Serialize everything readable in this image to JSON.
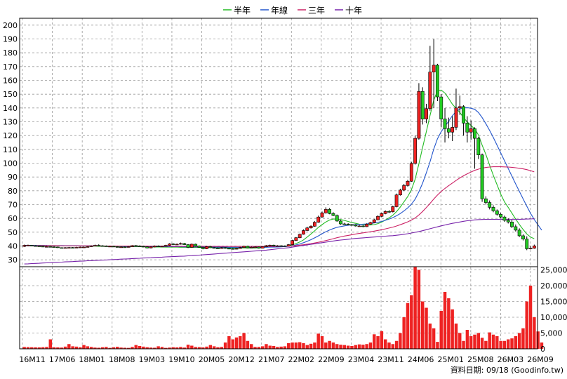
{
  "chart_data": {
    "type": "candlestick",
    "legend": [
      {
        "name": "半年",
        "color": "#22bb22"
      },
      {
        "name": "年線",
        "color": "#2255cc"
      },
      {
        "name": "三年",
        "color": "#cc2266"
      },
      {
        "name": "十年",
        "color": "#7722aa"
      }
    ],
    "price_axis": {
      "ylim": [
        25,
        205
      ],
      "ticks": [
        30,
        40,
        50,
        60,
        70,
        80,
        90,
        100,
        110,
        120,
        130,
        140,
        150,
        160,
        170,
        180,
        190,
        200
      ]
    },
    "volume_axis": {
      "ylim": [
        0,
        26000
      ],
      "ticks": [
        "0",
        "5,000",
        "10,000",
        "15,000",
        "20,000",
        "25,000"
      ],
      "tick_values": [
        0,
        5000,
        10000,
        15000,
        20000,
        25000
      ]
    },
    "x_tick_labels": [
      "16M11",
      "17M06",
      "18M01",
      "18M08",
      "19M03",
      "19M10",
      "20M05",
      "20M12",
      "21M07",
      "22M02",
      "22M09",
      "23M04",
      "23M11",
      "24M06",
      "25M01",
      "25M08",
      "26M03",
      "26M09"
    ],
    "colors": {
      "up": "#ee2222",
      "down": "#22cc22",
      "volume": "#ee2222",
      "grid": "#999999"
    },
    "source_label": "資料日期: 09/18  (Goodinfo.tw)",
    "candles": {
      "close": [
        40.5,
        40.6,
        40.2,
        40.0,
        39.8,
        39.5,
        39.6,
        39.4,
        39.3,
        38.8,
        38.6,
        38.8,
        38.9,
        38.7,
        39.0,
        39.2,
        39.2,
        39.5,
        40.0,
        40.5,
        40.2,
        40.0,
        39.8,
        39.8,
        39.5,
        39.3,
        39.3,
        39.2,
        39.5,
        40.3,
        40.0,
        39.8,
        39.4,
        38.6,
        39.3,
        40.0,
        39.6,
        39.8,
        40.5,
        41.5,
        41.0,
        41.3,
        41.8,
        41.0,
        39.0,
        41.3,
        40.0,
        39.0,
        38.0,
        39.5,
        38.8,
        38.5,
        38.2,
        38.8,
        38.3,
        38.1,
        37.8,
        38.2,
        38.9,
        39.8,
        38.7,
        39.1,
        39.3,
        38.4,
        39.5,
        40.3,
        40.6,
        40.1,
        40.2,
        40.1,
        40.0,
        41.0,
        44.0,
        46.0,
        48.5,
        51.2,
        53.1,
        54.3,
        57.2,
        61.0,
        64.0,
        66.5,
        63.5,
        62.1,
        58.1,
        56.0,
        55.8,
        55.5,
        55.2,
        54.5,
        54.5,
        54.0,
        55.8,
        57.0,
        59.0,
        61.5,
        63.5,
        65.0,
        64.8,
        68.5,
        77.0,
        80.5,
        83.8,
        86.9,
        99.8,
        118.0,
        152.0,
        132.0,
        139.5,
        166.0,
        171.0,
        148.0,
        132.0,
        125.0,
        122.5,
        126.0,
        140.0,
        141.0,
        129.0,
        122.5,
        125.0,
        118.0,
        106.0,
        74.2,
        71.5,
        68.0,
        65.5,
        63.0,
        61.0,
        58.6,
        57.4,
        54.0,
        51.5,
        47.4,
        45.0,
        38.0,
        38.4,
        40.1
      ],
      "open": [
        39.7,
        40.4,
        40.5,
        40.2,
        40.0,
        39.8,
        39.5,
        39.6,
        39.4,
        39.3,
        38.8,
        38.6,
        38.8,
        38.9,
        38.7,
        39.0,
        39.2,
        39.2,
        39.5,
        40.0,
        40.5,
        40.2,
        40.0,
        39.8,
        39.8,
        39.5,
        39.3,
        39.3,
        39.2,
        39.5,
        40.3,
        40.0,
        39.8,
        39.4,
        38.6,
        39.3,
        40.0,
        39.6,
        39.8,
        40.5,
        41.5,
        41.0,
        41.3,
        41.8,
        41.0,
        39.0,
        41.3,
        40.0,
        39.0,
        38.0,
        39.5,
        38.8,
        38.5,
        38.2,
        38.8,
        38.3,
        38.1,
        37.8,
        38.2,
        38.9,
        39.8,
        38.7,
        39.1,
        39.3,
        38.4,
        39.5,
        40.3,
        40.6,
        40.1,
        40.2,
        40.1,
        40.0,
        41.0,
        44.0,
        46.0,
        48.5,
        51.2,
        53.1,
        54.3,
        57.2,
        61.0,
        64.0,
        66.5,
        63.5,
        62.1,
        58.1,
        56.0,
        55.8,
        55.5,
        55.2,
        54.5,
        54.5,
        54.0,
        55.8,
        57.0,
        59.0,
        61.5,
        63.5,
        65.0,
        64.8,
        68.5,
        77.0,
        80.5,
        83.8,
        86.9,
        99.8,
        118.0,
        152.0,
        132.0,
        139.5,
        166.0,
        171.0,
        148.0,
        132.0,
        125.0,
        122.5,
        126.0,
        140.0,
        141.0,
        129.0,
        122.5,
        125.0,
        118.0,
        106.0,
        74.2,
        71.5,
        68.0,
        65.5,
        63.0,
        61.0,
        58.6,
        57.4,
        54.0,
        51.5,
        47.4,
        45.0,
        38.0,
        38.4
      ],
      "high": [
        41.0,
        41.0,
        40.8,
        40.5,
        40.3,
        40.0,
        40.0,
        39.9,
        39.8,
        39.6,
        39.0,
        39.2,
        39.3,
        39.2,
        39.4,
        39.6,
        39.7,
        39.9,
        40.4,
        41.0,
        41.2,
        40.6,
        40.4,
        40.2,
        40.2,
        39.9,
        39.7,
        39.7,
        39.9,
        40.6,
        40.7,
        40.5,
        40.2,
        39.8,
        39.7,
        40.4,
        40.4,
        40.2,
        40.9,
        42.0,
        42.0,
        41.8,
        42.5,
        42.3,
        41.4,
        41.8,
        41.7,
        40.4,
        39.4,
        40.0,
        40.0,
        39.2,
        39.0,
        39.2,
        39.2,
        38.7,
        38.5,
        38.6,
        39.3,
        40.2,
        40.2,
        39.6,
        39.7,
        39.6,
        39.9,
        40.7,
        41.0,
        41.0,
        40.6,
        40.6,
        40.5,
        41.4,
        44.5,
        46.5,
        49.0,
        52.0,
        54.0,
        55.0,
        58.0,
        62.0,
        65.0,
        68.0,
        67.5,
        64.5,
        62.8,
        58.8,
        56.8,
        56.5,
        56.0,
        55.8,
        55.3,
        55.0,
        56.4,
        57.6,
        59.6,
        62.2,
        64.2,
        65.8,
        66.0,
        69.2,
        78.0,
        81.5,
        85.0,
        88.0,
        101.0,
        120.0,
        158.0,
        155.0,
        143.0,
        185.0,
        190.0,
        172.0,
        150.0,
        140.0,
        133.0,
        134.0,
        154.0,
        149.0,
        142.0,
        134.0,
        131.0,
        126.0,
        119.0,
        107.0,
        76.0,
        73.0,
        69.5,
        66.5,
        64.0,
        62.0,
        60.0,
        59.0,
        55.6,
        52.8,
        48.5,
        47.0,
        40.0,
        41.0
      ],
      "low": [
        39.3,
        39.9,
        39.8,
        39.7,
        39.5,
        39.2,
        39.2,
        39.1,
        38.9,
        38.5,
        38.3,
        38.3,
        38.5,
        38.4,
        38.5,
        38.8,
        38.9,
        39.0,
        39.3,
        39.8,
        39.9,
        39.7,
        39.5,
        39.4,
        39.2,
        39.0,
        39.0,
        38.9,
        38.9,
        39.3,
        39.7,
        39.5,
        39.1,
        38.3,
        38.3,
        39.0,
        39.3,
        39.4,
        39.6,
        40.2,
        40.7,
        40.8,
        41.0,
        40.8,
        38.5,
        38.7,
        39.7,
        38.8,
        37.6,
        37.7,
        38.5,
        38.3,
        37.9,
        38.0,
        38.0,
        37.8,
        37.5,
        37.6,
        38.0,
        38.7,
        38.4,
        38.5,
        38.9,
        38.1,
        38.2,
        39.3,
        40.0,
        39.8,
        39.9,
        39.9,
        39.8,
        39.8,
        40.8,
        43.6,
        45.6,
        48.2,
        50.8,
        52.6,
        54.0,
        56.8,
        60.6,
        63.5,
        63.0,
        61.6,
        57.6,
        55.4,
        55.4,
        55.0,
        54.7,
        54.1,
        54.1,
        53.6,
        53.8,
        55.5,
        56.6,
        58.6,
        61.0,
        63.0,
        64.0,
        64.3,
        68.0,
        76.5,
        79.8,
        83.0,
        86.5,
        99.0,
        117.0,
        128.0,
        129.0,
        138.0,
        140.0,
        145.0,
        126.0,
        115.0,
        118.0,
        116.0,
        124.0,
        135.0,
        120.0,
        115.0,
        117.0,
        96.0,
        103.0,
        72.0,
        70.0,
        66.5,
        64.5,
        62.0,
        60.0,
        57.5,
        56.3,
        53.0,
        50.5,
        46.5,
        44.0,
        37.0,
        37.5,
        38.0
      ]
    },
    "moving_averages": {
      "半年": [
        40.4,
        40.4,
        40.4,
        40.4,
        40.4,
        40.4,
        40.3,
        40.3,
        40.3,
        40.2,
        40.2,
        40.2,
        40.1,
        40.1,
        40.0,
        40.0,
        40.0,
        39.9,
        39.9,
        39.9,
        39.8,
        39.8,
        39.8,
        39.7,
        39.7,
        39.7,
        39.6,
        39.6,
        39.6,
        39.5,
        39.5,
        39.5,
        39.4,
        39.4,
        39.4,
        39.3,
        39.3,
        39.3,
        39.2,
        39.2,
        39.2,
        39.2,
        39.1,
        39.1,
        39.1,
        39.0,
        39.0,
        39.0,
        38.9,
        38.9,
        38.9,
        38.8,
        38.8,
        38.8,
        38.7,
        38.7,
        38.7,
        38.6,
        38.6,
        38.6,
        38.5,
        38.5,
        38.5,
        38.8,
        39.1,
        39.2,
        39.3,
        39.4,
        39.5,
        39.6,
        39.8,
        40.1,
        40.8,
        41.8,
        42.9,
        44.4,
        46.5,
        48.7,
        51.0,
        53.5,
        55.5,
        57.4,
        58.8,
        59.5,
        59.6,
        59.2,
        58.5,
        57.8,
        57.0,
        56.4,
        55.8,
        55.4,
        55.2,
        55.2,
        55.5,
        56.2,
        57.3,
        58.8,
        60.4,
        62.3,
        64.9,
        68.2,
        72.0,
        75.8,
        80.8,
        88.4,
        99.5,
        111.3,
        122.8,
        134.6,
        145.6,
        152.5,
        153.0,
        150.8,
        147.0,
        142.7,
        139.7,
        136.7,
        133.0,
        129.9,
        127.3,
        124.8,
        120.5,
        113.0,
        106.3,
        98.6,
        91.2,
        84.4,
        77.6,
        72.0,
        68.0,
        63.8,
        59.5,
        55.6,
        52.0,
        48.7,
        46.5,
        45.3
      ],
      "年線": [
        40.5,
        40.5,
        40.5,
        40.4,
        40.4,
        40.4,
        40.4,
        40.3,
        40.3,
        40.3,
        40.3,
        40.2,
        40.2,
        40.2,
        40.2,
        40.1,
        40.1,
        40.1,
        40.1,
        40.0,
        40.0,
        40.0,
        40.0,
        39.9,
        39.9,
        39.9,
        39.9,
        39.8,
        39.8,
        39.8,
        39.8,
        39.7,
        39.7,
        39.7,
        39.7,
        39.6,
        39.6,
        39.6,
        39.6,
        39.5,
        39.5,
        39.5,
        39.5,
        39.4,
        39.4,
        39.4,
        39.4,
        39.3,
        39.3,
        39.3,
        39.3,
        39.2,
        39.2,
        39.2,
        39.2,
        39.1,
        39.1,
        39.1,
        39.1,
        39.1,
        39.1,
        39.1,
        39.1,
        39.1,
        39.1,
        39.1,
        39.2,
        39.2,
        39.3,
        39.4,
        39.6,
        39.8,
        40.2,
        40.8,
        41.5,
        42.4,
        43.4,
        44.6,
        45.9,
        47.3,
        48.9,
        50.3,
        51.6,
        52.6,
        53.5,
        54.1,
        54.6,
        55.0,
        55.3,
        55.5,
        55.6,
        55.8,
        56.0,
        56.3,
        56.7,
        57.2,
        57.8,
        58.6,
        59.5,
        60.6,
        61.9,
        63.5,
        65.4,
        67.6,
        70.3,
        73.9,
        79.2,
        85.5,
        93.0,
        101.0,
        110.2,
        117.7,
        122.8,
        126.6,
        130.4,
        134.4,
        137.5,
        139.3,
        140.0,
        140.2,
        139.8,
        139.0,
        136.7,
        133.0,
        128.6,
        123.8,
        118.6,
        113.0,
        107.4,
        101.8,
        96.2,
        90.6,
        85.0,
        79.6,
        74.2,
        68.9,
        63.7,
        59.2,
        55.3,
        51.5
      ],
      "三年": [
        40.2,
        40.2,
        40.2,
        40.2,
        40.2,
        40.2,
        40.2,
        40.2,
        40.2,
        40.2,
        40.1,
        40.1,
        40.1,
        40.1,
        40.1,
        40.1,
        40.1,
        40.1,
        40.1,
        40.1,
        40.0,
        40.0,
        40.0,
        40.0,
        40.0,
        40.0,
        40.0,
        40.0,
        40.0,
        40.0,
        39.9,
        39.9,
        39.9,
        39.9,
        39.9,
        39.9,
        39.9,
        39.9,
        39.9,
        39.9,
        39.8,
        39.8,
        39.8,
        39.8,
        39.8,
        39.8,
        39.8,
        39.8,
        39.8,
        39.8,
        39.7,
        39.7,
        39.7,
        39.7,
        39.7,
        39.7,
        39.7,
        39.7,
        39.7,
        39.7,
        39.7,
        39.7,
        39.7,
        39.7,
        39.7,
        39.7,
        39.7,
        39.7,
        39.7,
        39.7,
        39.8,
        39.9,
        40.1,
        40.3,
        40.6,
        40.9,
        41.3,
        41.7,
        42.2,
        42.7,
        43.3,
        43.9,
        44.6,
        45.3,
        46.0,
        46.6,
        47.2,
        47.7,
        48.2,
        48.7,
        49.1,
        49.5,
        49.9,
        50.3,
        50.8,
        51.3,
        51.8,
        52.4,
        53.0,
        53.7,
        54.5,
        55.4,
        56.4,
        57.5,
        58.8,
        60.3,
        62.5,
        65.0,
        67.8,
        70.8,
        74.0,
        76.9,
        79.5,
        81.7,
        83.7,
        85.6,
        87.5,
        89.3,
        90.9,
        92.3,
        93.6,
        94.8,
        95.7,
        96.4,
        96.9,
        97.2,
        97.4,
        97.4,
        97.4,
        97.3,
        97.2,
        97.0,
        96.7,
        96.3,
        95.9,
        95.3,
        94.6,
        93.7
      ],
      "十年": [
        27.0,
        27.1,
        27.3,
        27.4,
        27.5,
        27.7,
        27.8,
        27.9,
        28.1,
        28.2,
        28.3,
        28.5,
        28.6,
        28.7,
        28.9,
        29.0,
        29.1,
        29.3,
        29.4,
        29.5,
        29.7,
        29.8,
        29.9,
        30.1,
        30.2,
        30.3,
        30.5,
        30.6,
        30.7,
        30.9,
        31.0,
        31.1,
        31.3,
        31.4,
        31.5,
        31.7,
        31.8,
        31.9,
        32.1,
        32.2,
        32.3,
        32.5,
        32.6,
        32.7,
        32.9,
        33.0,
        33.2,
        33.4,
        33.6,
        33.8,
        34.0,
        34.2,
        34.4,
        34.6,
        34.8,
        35.0,
        35.2,
        35.4,
        35.6,
        35.8,
        36.0,
        36.2,
        36.4,
        36.6,
        36.8,
        37.0,
        37.3,
        37.6,
        37.9,
        38.2,
        38.5,
        38.8,
        39.2,
        39.6,
        40.0,
        40.4,
        40.8,
        41.2,
        41.6,
        42.0,
        42.4,
        42.8,
        43.2,
        43.6,
        44.0,
        44.3,
        44.6,
        44.9,
        45.2,
        45.5,
        45.7,
        45.9,
        46.1,
        46.3,
        46.5,
        46.7,
        46.9,
        47.1,
        47.3,
        47.5,
        47.8,
        48.1,
        48.5,
        48.9,
        49.4,
        49.9,
        50.5,
        51.1,
        51.8,
        52.5,
        53.2,
        53.9,
        54.6,
        55.2,
        55.8,
        56.4,
        56.9,
        57.4,
        57.9,
        58.3,
        58.6,
        58.9,
        59.1,
        59.2,
        59.3,
        59.3,
        59.3,
        59.3,
        59.3,
        59.2,
        59.2,
        59.2,
        59.2,
        59.3,
        59.4,
        59.5,
        59.6,
        59.8
      ]
    },
    "volume": [
      600,
      550,
      500,
      480,
      450,
      520,
      600,
      3000,
      500,
      450,
      400,
      700,
      1500,
      800,
      700,
      500,
      1200,
      800,
      600,
      400,
      350,
      500,
      600,
      300,
      500,
      650,
      400,
      350,
      300,
      600,
      1200,
      900,
      700,
      500,
      400,
      350,
      800,
      600,
      300,
      400,
      500,
      450,
      600,
      400,
      1300,
      1000,
      600,
      550,
      450,
      700,
      1200,
      800,
      500,
      600,
      2000,
      4000,
      3000,
      3600,
      4000,
      5000,
      2500,
      1500,
      600,
      600,
      800,
      1500,
      1000,
      900,
      600,
      700,
      800,
      1800,
      2000,
      2000,
      2100,
      1800,
      1200,
      1600,
      2000,
      4800,
      4000,
      2000,
      2500,
      2000,
      1500,
      1300,
      1200,
      1000,
      900,
      1200,
      1400,
      1300,
      1500,
      2000,
      4600,
      4000,
      5600,
      3000,
      2000,
      1500,
      2500,
      5000,
      10000,
      14500,
      17000,
      26000,
      25000,
      15000,
      13000,
      8000,
      6500,
      2200,
      12000,
      18000,
      16000,
      12500,
      8000,
      5000,
      2500,
      6000,
      4000,
      4500,
      5000,
      3500,
      2500,
      5200,
      4500,
      4000,
      2500,
      2500,
      3000,
      3300,
      4000,
      5000,
      6500,
      15000,
      20000,
      10000,
      5500,
      2000
    ]
  }
}
